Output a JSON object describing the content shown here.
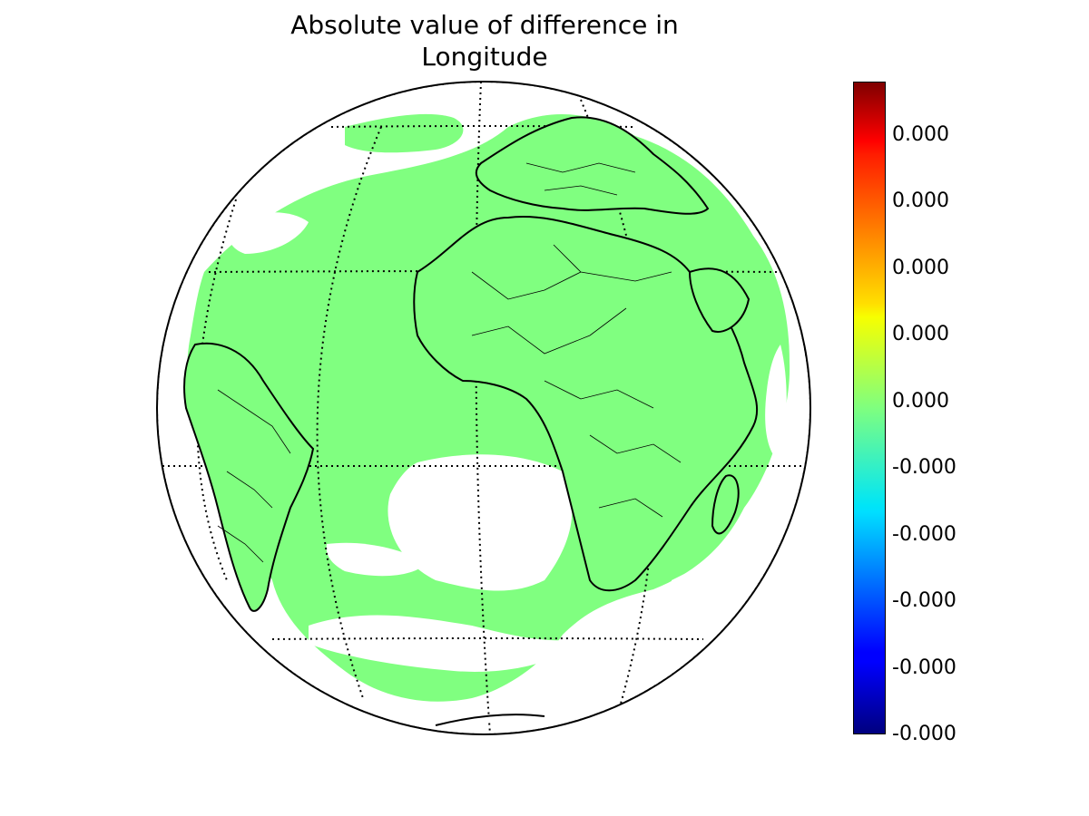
{
  "title_line1": "Absolute value of difference in",
  "title_line2": "Longitude",
  "map": {
    "projection": "orthographic",
    "field_color": "#80ff80",
    "coastline_color": "#000000",
    "graticule_style": "dotted"
  },
  "colorbar": {
    "colormap": "jet",
    "ticks": [
      "-0.000",
      "-0.000",
      "-0.000",
      "-0.000",
      "-0.000",
      "0.000",
      "0.000",
      "0.000",
      "0.000",
      "0.000"
    ]
  }
}
